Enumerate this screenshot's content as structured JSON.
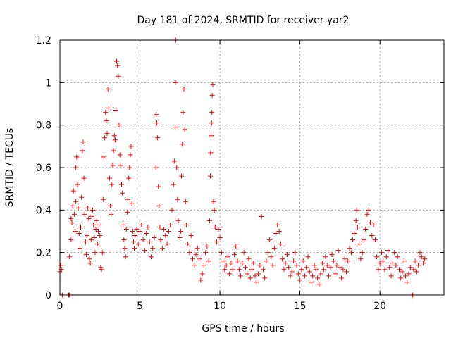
{
  "chart_data": {
    "type": "scatter",
    "title": "Day 181 of 2024, SRMTID for receiver yar2",
    "xlabel": "GPS time / hours",
    "ylabel": "SRMTID / TECUs",
    "xlim": [
      0,
      24
    ],
    "ylim": [
      0,
      1.2
    ],
    "xticks": [
      0,
      5,
      10,
      15,
      20
    ],
    "yticks": [
      0,
      0.2,
      0.4,
      0.6,
      0.8,
      1,
      1.2
    ],
    "xtick_labels": [
      "0",
      "5",
      "10",
      "15",
      "20"
    ],
    "ytick_labels": [
      "0",
      "0.2",
      "0.4",
      "0.6",
      "0.8",
      "1",
      "1.2"
    ],
    "grid": true,
    "marker": "+",
    "color": "#ff0000",
    "series": [
      {
        "name": "SRMTID",
        "points": [
          [
            0.0,
            0.11
          ],
          [
            0.05,
            0.14
          ],
          [
            0.1,
            0.12
          ],
          [
            0.15,
            0.0
          ],
          [
            0.55,
            0.0
          ],
          [
            0.6,
            0.0
          ],
          [
            0.6,
            0.18
          ],
          [
            0.7,
            0.26
          ],
          [
            0.7,
            0.36
          ],
          [
            0.75,
            0.34
          ],
          [
            0.8,
            0.42
          ],
          [
            0.85,
            0.49
          ],
          [
            0.9,
            0.38
          ],
          [
            0.95,
            0.3
          ],
          [
            1.0,
            0.44
          ],
          [
            1.0,
            0.6
          ],
          [
            1.05,
            0.65
          ],
          [
            1.1,
            0.52
          ],
          [
            1.15,
            0.41
          ],
          [
            1.2,
            0.29
          ],
          [
            1.25,
            0.22
          ],
          [
            1.3,
            0.32
          ],
          [
            1.35,
            0.46
          ],
          [
            1.4,
            0.68
          ],
          [
            1.45,
            0.72
          ],
          [
            1.5,
            0.55
          ],
          [
            1.55,
            0.38
          ],
          [
            1.6,
            0.25
          ],
          [
            1.65,
            0.19
          ],
          [
            1.7,
            0.28
          ],
          [
            1.75,
            0.41
          ],
          [
            1.8,
            0.36
          ],
          [
            1.85,
            0.17
          ],
          [
            1.9,
            0.15
          ],
          [
            1.95,
            0.26
          ],
          [
            2.0,
            0.37
          ],
          [
            2.05,
            0.4
          ],
          [
            2.1,
            0.33
          ],
          [
            2.15,
            0.27
          ],
          [
            2.2,
            0.2
          ],
          [
            2.25,
            0.31
          ],
          [
            2.3,
            0.35
          ],
          [
            2.35,
            0.24
          ],
          [
            2.4,
            0.3
          ],
          [
            2.45,
            0.33
          ],
          [
            2.5,
            0.28
          ],
          [
            2.55,
            0.13
          ],
          [
            2.6,
            0.12
          ],
          [
            2.65,
            0.2
          ],
          [
            2.7,
            0.45
          ],
          [
            2.75,
            0.65
          ],
          [
            2.8,
            0.74
          ],
          [
            2.85,
            0.86
          ],
          [
            2.9,
            0.82
          ],
          [
            2.95,
            0.76
          ],
          [
            3.0,
            0.97
          ],
          [
            3.05,
            0.88
          ],
          [
            3.1,
            0.55
          ],
          [
            3.15,
            0.42
          ],
          [
            3.2,
            0.38
          ],
          [
            3.25,
            0.52
          ],
          [
            3.3,
            0.61
          ],
          [
            3.35,
            0.68
          ],
          [
            3.4,
            0.75
          ],
          [
            3.45,
            0.73
          ],
          [
            3.5,
            0.87
          ],
          [
            3.55,
            1.1
          ],
          [
            3.6,
            1.08
          ],
          [
            3.65,
            1.03
          ],
          [
            3.7,
            0.8
          ],
          [
            3.75,
            0.66
          ],
          [
            3.8,
            0.61
          ],
          [
            3.85,
            0.52
          ],
          [
            3.9,
            0.48
          ],
          [
            3.95,
            0.33
          ],
          [
            4.0,
            0.26
          ],
          [
            4.05,
            0.22
          ],
          [
            4.1,
            0.18
          ],
          [
            4.15,
            0.31
          ],
          [
            4.2,
            0.39
          ],
          [
            4.25,
            0.45
          ],
          [
            4.3,
            0.55
          ],
          [
            4.35,
            0.6
          ],
          [
            4.4,
            0.66
          ],
          [
            4.45,
            0.7
          ],
          [
            4.5,
            0.43
          ],
          [
            4.55,
            0.3
          ],
          [
            4.6,
            0.25
          ],
          [
            4.65,
            0.22
          ],
          [
            4.7,
            0.28
          ],
          [
            4.8,
            0.31
          ],
          [
            4.9,
            0.24
          ],
          [
            5.0,
            0.3
          ],
          [
            5.1,
            0.33
          ],
          [
            5.2,
            0.26
          ],
          [
            5.3,
            0.21
          ],
          [
            5.4,
            0.29
          ],
          [
            5.5,
            0.32
          ],
          [
            5.6,
            0.25
          ],
          [
            5.7,
            0.18
          ],
          [
            5.8,
            0.22
          ],
          [
            5.9,
            0.27
          ],
          [
            6.0,
            0.6
          ],
          [
            6.02,
            0.85
          ],
          [
            6.05,
            0.81
          ],
          [
            6.1,
            0.74
          ],
          [
            6.15,
            0.51
          ],
          [
            6.2,
            0.42
          ],
          [
            6.25,
            0.32
          ],
          [
            6.3,
            0.26
          ],
          [
            6.4,
            0.22
          ],
          [
            6.5,
            0.31
          ],
          [
            6.6,
            0.28
          ],
          [
            6.7,
            0.24
          ],
          [
            6.8,
            0.3
          ],
          [
            6.9,
            0.33
          ],
          [
            7.0,
            0.4
          ],
          [
            7.1,
            0.52
          ],
          [
            7.15,
            0.63
          ],
          [
            7.2,
            0.79
          ],
          [
            7.22,
            1.0
          ],
          [
            7.25,
            1.2
          ],
          [
            7.3,
            0.6
          ],
          [
            7.35,
            0.45
          ],
          [
            7.4,
            0.35
          ],
          [
            7.5,
            0.27
          ],
          [
            7.55,
            0.3
          ],
          [
            7.6,
            0.56
          ],
          [
            7.65,
            0.71
          ],
          [
            7.7,
            0.86
          ],
          [
            7.75,
            0.97
          ],
          [
            7.8,
            0.78
          ],
          [
            7.85,
            0.44
          ],
          [
            7.9,
            0.33
          ],
          [
            8.0,
            0.24
          ],
          [
            8.1,
            0.2
          ],
          [
            8.2,
            0.28
          ],
          [
            8.3,
            0.17
          ],
          [
            8.4,
            0.14
          ],
          [
            8.5,
            0.19
          ],
          [
            8.6,
            0.22
          ],
          [
            8.7,
            0.17
          ],
          [
            8.8,
            0.07
          ],
          [
            8.9,
            0.1
          ],
          [
            9.0,
            0.14
          ],
          [
            9.1,
            0.2
          ],
          [
            9.2,
            0.23
          ],
          [
            9.3,
            0.16
          ],
          [
            9.35,
            0.35
          ],
          [
            9.4,
            0.56
          ],
          [
            9.42,
            0.67
          ],
          [
            9.45,
            0.75
          ],
          [
            9.48,
            0.81
          ],
          [
            9.5,
            0.86
          ],
          [
            9.52,
            0.94
          ],
          [
            9.55,
            0.99
          ],
          [
            9.6,
            0.44
          ],
          [
            9.65,
            0.4
          ],
          [
            9.7,
            0.32
          ],
          [
            9.8,
            0.25
          ],
          [
            9.9,
            0.31
          ],
          [
            10.0,
            0.27
          ],
          [
            10.1,
            0.2
          ],
          [
            10.2,
            0.16
          ],
          [
            10.3,
            0.12
          ],
          [
            10.4,
            0.14
          ],
          [
            10.5,
            0.18
          ],
          [
            10.6,
            0.1
          ],
          [
            10.7,
            0.15
          ],
          [
            10.8,
            0.12
          ],
          [
            10.9,
            0.19
          ],
          [
            11.0,
            0.23
          ],
          [
            11.1,
            0.16
          ],
          [
            11.2,
            0.12
          ],
          [
            11.3,
            0.09
          ],
          [
            11.4,
            0.15
          ],
          [
            11.5,
            0.2
          ],
          [
            11.6,
            0.13
          ],
          [
            11.7,
            0.1
          ],
          [
            11.8,
            0.17
          ],
          [
            11.9,
            0.08
          ],
          [
            12.0,
            0.12
          ],
          [
            12.1,
            0.15
          ],
          [
            12.2,
            0.09
          ],
          [
            12.3,
            0.06
          ],
          [
            12.4,
            0.1
          ],
          [
            12.5,
            0.14
          ],
          [
            12.6,
            0.37
          ],
          [
            12.7,
            0.12
          ],
          [
            12.8,
            0.08
          ],
          [
            12.9,
            0.16
          ],
          [
            13.0,
            0.2
          ],
          [
            13.1,
            0.26
          ],
          [
            13.2,
            0.18
          ],
          [
            13.3,
            0.14
          ],
          [
            13.4,
            0.22
          ],
          [
            13.5,
            0.29
          ],
          [
            13.6,
            0.33
          ],
          [
            13.7,
            0.3
          ],
          [
            13.8,
            0.24
          ],
          [
            13.9,
            0.17
          ],
          [
            14.0,
            0.12
          ],
          [
            14.1,
            0.15
          ],
          [
            14.2,
            0.19
          ],
          [
            14.3,
            0.13
          ],
          [
            14.4,
            0.09
          ],
          [
            14.5,
            0.11
          ],
          [
            14.6,
            0.16
          ],
          [
            14.7,
            0.2
          ],
          [
            14.8,
            0.14
          ],
          [
            14.9,
            0.1
          ],
          [
            15.0,
            0.07
          ],
          [
            15.1,
            0.12
          ],
          [
            15.2,
            0.16
          ],
          [
            15.3,
            0.09
          ],
          [
            15.4,
            0.13
          ],
          [
            15.5,
            0.18
          ],
          [
            15.6,
            0.11
          ],
          [
            15.7,
            0.06
          ],
          [
            15.8,
            0.09
          ],
          [
            15.9,
            0.14
          ],
          [
            16.0,
            0.12
          ],
          [
            16.1,
            0.08
          ],
          [
            16.2,
            0.05
          ],
          [
            16.3,
            0.1
          ],
          [
            16.4,
            0.15
          ],
          [
            16.5,
            0.12
          ],
          [
            16.6,
            0.18
          ],
          [
            16.7,
            0.14
          ],
          [
            16.8,
            0.09
          ],
          [
            16.9,
            0.13
          ],
          [
            17.0,
            0.19
          ],
          [
            17.1,
            0.16
          ],
          [
            17.2,
            0.1
          ],
          [
            17.3,
            0.14
          ],
          [
            17.4,
            0.21
          ],
          [
            17.5,
            0.13
          ],
          [
            17.6,
            0.08
          ],
          [
            17.7,
            0.12
          ],
          [
            17.8,
            0.17
          ],
          [
            17.9,
            0.11
          ],
          [
            18.0,
            0.16
          ],
          [
            18.1,
            0.22
          ],
          [
            18.2,
            0.2
          ],
          [
            18.3,
            0.26
          ],
          [
            18.4,
            0.29
          ],
          [
            18.5,
            0.35
          ],
          [
            18.55,
            0.4
          ],
          [
            18.6,
            0.32
          ],
          [
            18.7,
            0.24
          ],
          [
            18.8,
            0.17
          ],
          [
            18.9,
            0.2
          ],
          [
            19.0,
            0.26
          ],
          [
            19.1,
            0.31
          ],
          [
            19.2,
            0.38
          ],
          [
            19.3,
            0.4
          ],
          [
            19.4,
            0.34
          ],
          [
            19.5,
            0.28
          ],
          [
            19.6,
            0.33
          ],
          [
            19.7,
            0.26
          ],
          [
            19.8,
            0.18
          ],
          [
            19.9,
            0.12
          ],
          [
            20.0,
            0.15
          ],
          [
            20.1,
            0.2
          ],
          [
            20.2,
            0.16
          ],
          [
            20.3,
            0.12
          ],
          [
            20.4,
            0.18
          ],
          [
            20.5,
            0.21
          ],
          [
            20.6,
            0.13
          ],
          [
            20.7,
            0.09
          ],
          [
            20.8,
            0.15
          ],
          [
            20.9,
            0.2
          ],
          [
            21.0,
            0.14
          ],
          [
            21.1,
            0.18
          ],
          [
            21.2,
            0.12
          ],
          [
            21.3,
            0.08
          ],
          [
            21.4,
            0.11
          ],
          [
            21.5,
            0.16
          ],
          [
            21.6,
            0.09
          ],
          [
            21.7,
            0.06
          ],
          [
            21.8,
            0.1
          ],
          [
            21.9,
            0.13
          ],
          [
            22.0,
            0.0
          ],
          [
            22.05,
            0.0
          ],
          [
            22.1,
            0.12
          ],
          [
            22.2,
            0.16
          ],
          [
            22.3,
            0.11
          ],
          [
            22.4,
            0.14
          ],
          [
            22.5,
            0.2
          ],
          [
            22.6,
            0.18
          ],
          [
            22.7,
            0.15
          ],
          [
            22.8,
            0.17
          ]
        ]
      }
    ]
  }
}
